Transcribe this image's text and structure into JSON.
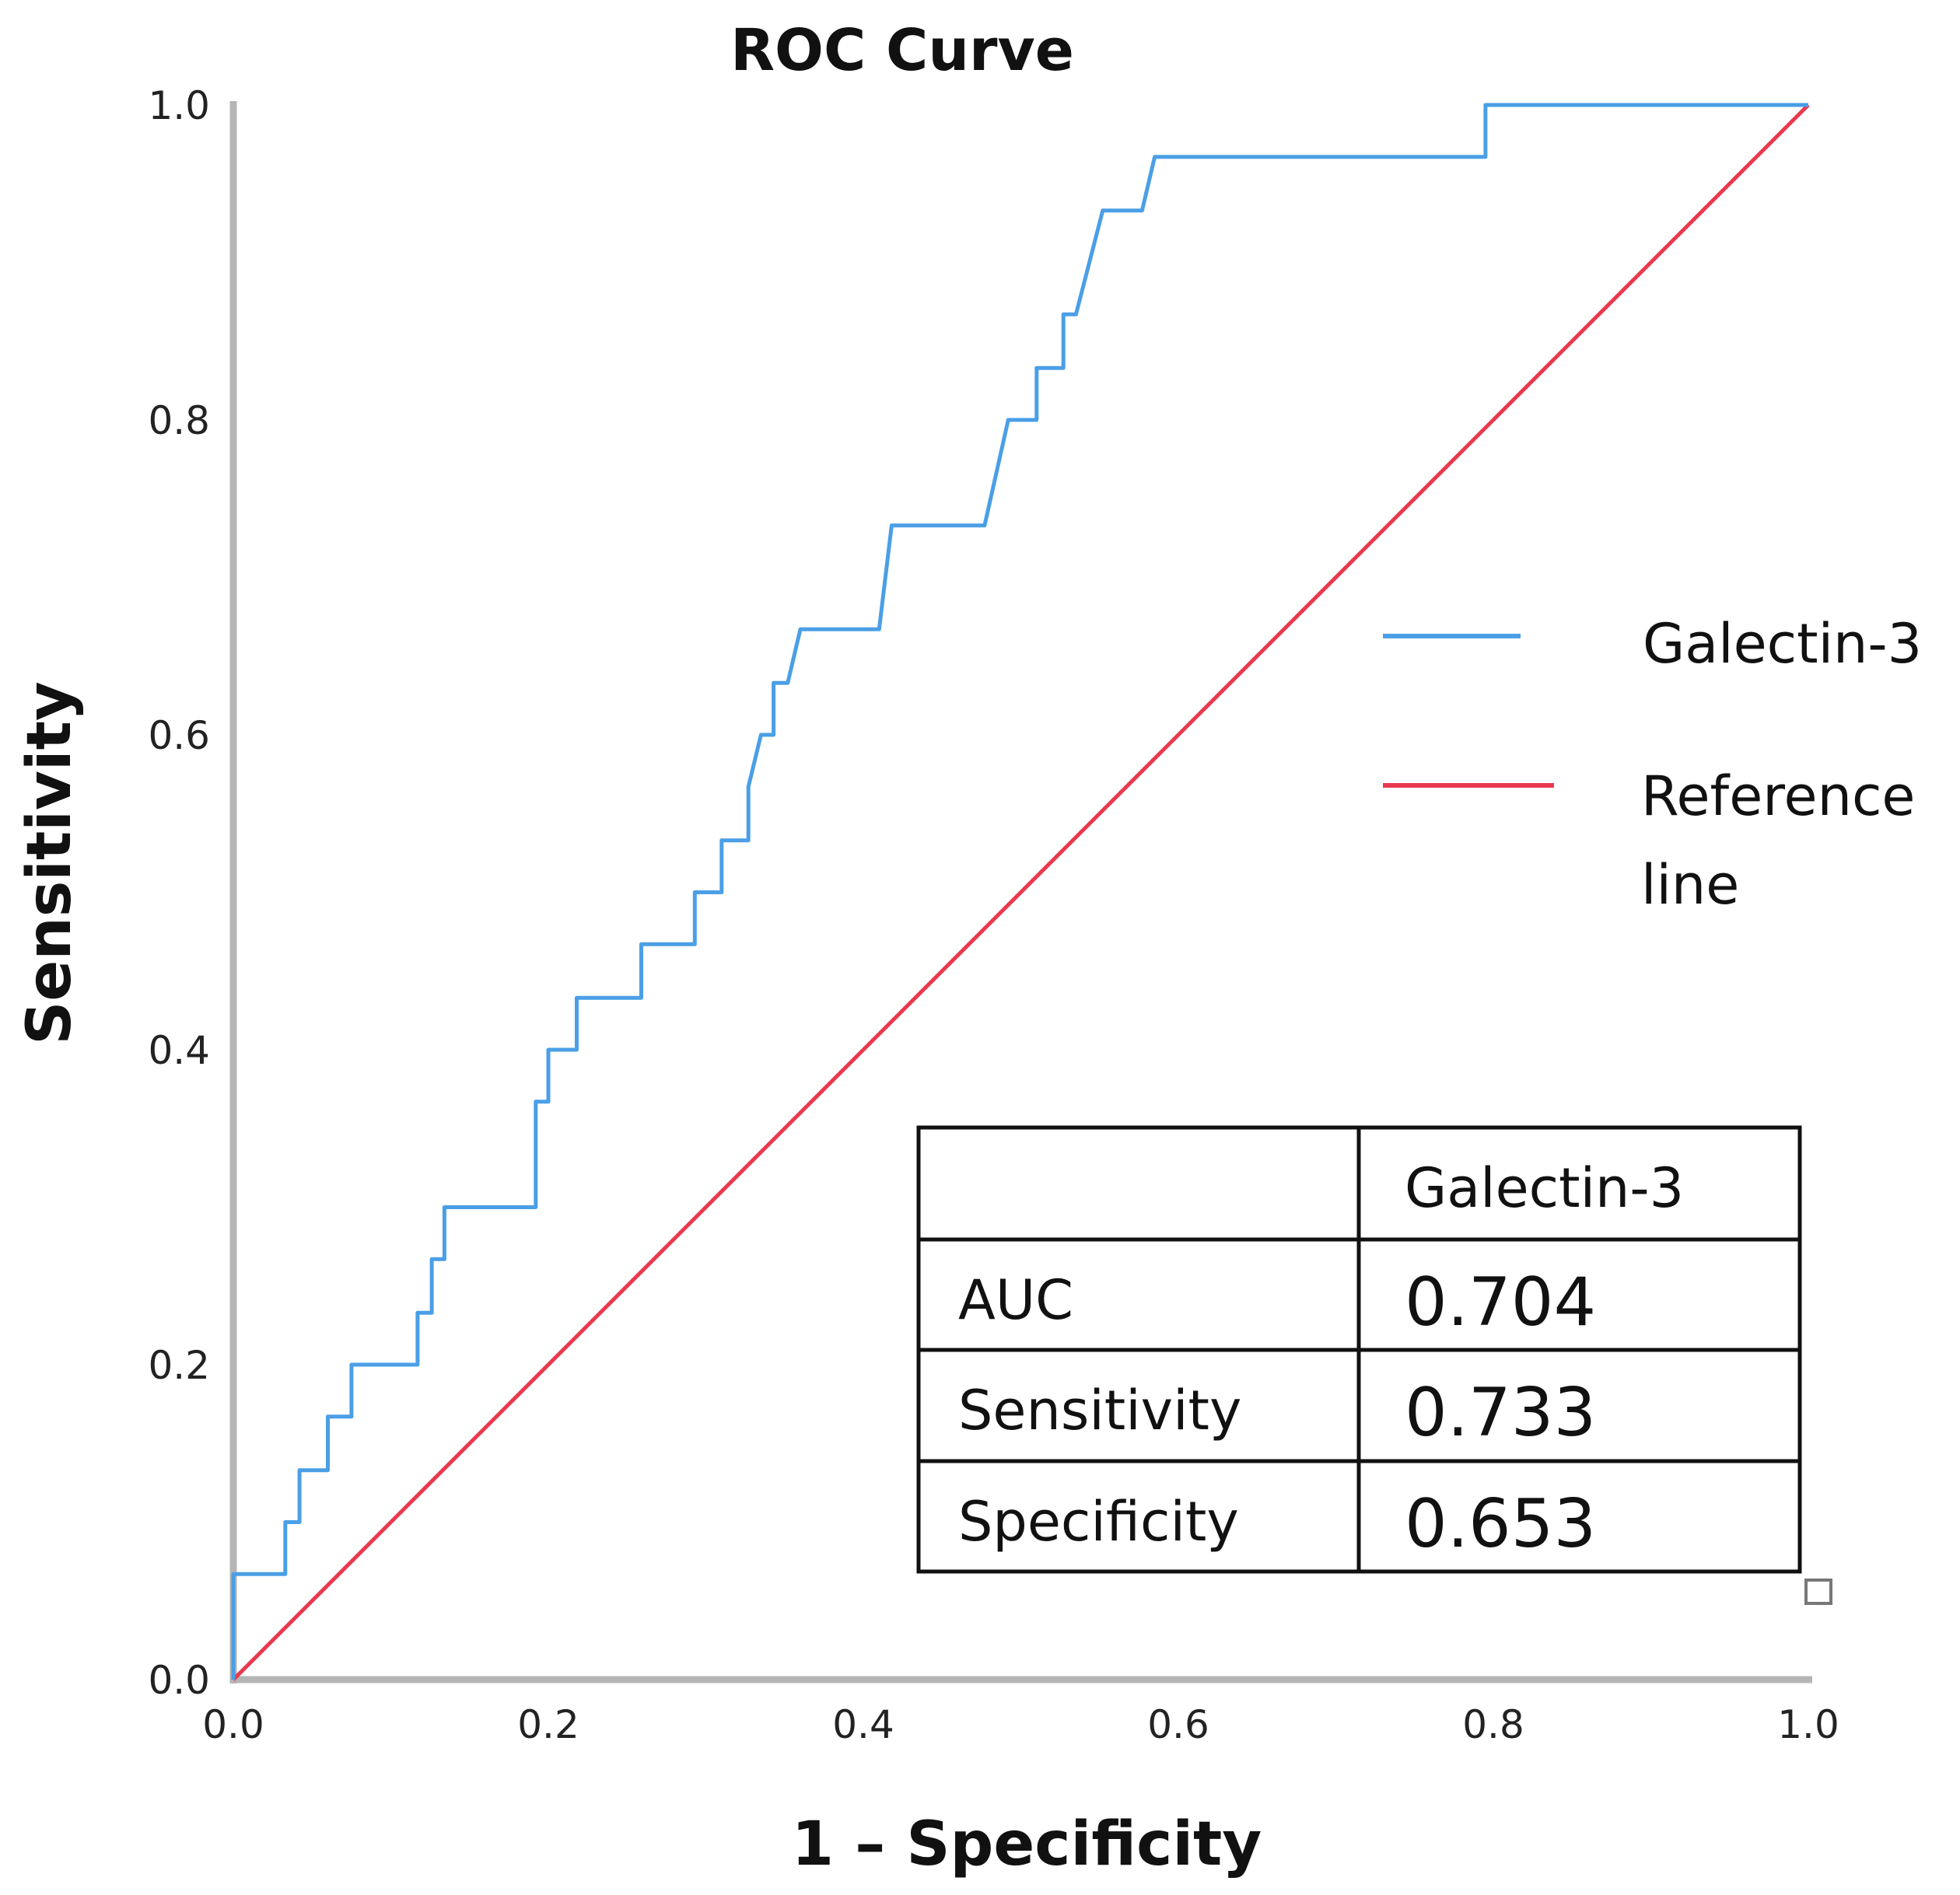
{
  "chart_data": {
    "type": "line",
    "title": "ROC Curve",
    "xlabel": "1 – Specificity",
    "ylabel": "Sensitivity",
    "xlim": [
      0,
      1
    ],
    "ylim": [
      0,
      1
    ],
    "x_ticks": [
      "0.0",
      "0.2",
      "0.4",
      "0.6",
      "0.8",
      "1.0"
    ],
    "y_ticks": [
      "0.0",
      "0.2",
      "0.4",
      "0.6",
      "0.8",
      "1.0"
    ],
    "grid": false,
    "legend": {
      "placement": "right",
      "entries": [
        {
          "label": "Galectin-3",
          "color": "#4a9fe6"
        },
        {
          "label_lines": [
            "Reference",
            "line"
          ],
          "color": "#e8394f"
        }
      ]
    },
    "series": [
      {
        "name": "Galectin-3",
        "color": "#4a9fe6",
        "points": [
          [
            0,
            0
          ],
          [
            0,
            0.067
          ],
          [
            0.033,
            0.067
          ],
          [
            0.033,
            0.1
          ],
          [
            0.042,
            0.1
          ],
          [
            0.042,
            0.133
          ],
          [
            0.06,
            0.133
          ],
          [
            0.06,
            0.167
          ],
          [
            0.075,
            0.167
          ],
          [
            0.075,
            0.2
          ],
          [
            0.117,
            0.2
          ],
          [
            0.117,
            0.233
          ],
          [
            0.126,
            0.233
          ],
          [
            0.126,
            0.267
          ],
          [
            0.134,
            0.267
          ],
          [
            0.134,
            0.3
          ],
          [
            0.192,
            0.3
          ],
          [
            0.192,
            0.367
          ],
          [
            0.2,
            0.367
          ],
          [
            0.2,
            0.4
          ],
          [
            0.218,
            0.4
          ],
          [
            0.218,
            0.433
          ],
          [
            0.259,
            0.433
          ],
          [
            0.259,
            0.467
          ],
          [
            0.293,
            0.467
          ],
          [
            0.293,
            0.5
          ],
          [
            0.31,
            0.5
          ],
          [
            0.31,
            0.533
          ],
          [
            0.327,
            0.533
          ],
          [
            0.327,
            0.567
          ],
          [
            0.335,
            0.6
          ],
          [
            0.343,
            0.6
          ],
          [
            0.343,
            0.633
          ],
          [
            0.352,
            0.633
          ],
          [
            0.36,
            0.667
          ],
          [
            0.41,
            0.667
          ],
          [
            0.418,
            0.733
          ],
          [
            0.477,
            0.733
          ],
          [
            0.492,
            0.8
          ],
          [
            0.51,
            0.8
          ],
          [
            0.51,
            0.833
          ],
          [
            0.527,
            0.833
          ],
          [
            0.527,
            0.867
          ],
          [
            0.535,
            0.867
          ],
          [
            0.552,
            0.933
          ],
          [
            0.577,
            0.933
          ],
          [
            0.585,
            0.967
          ],
          [
            0.795,
            0.967
          ],
          [
            0.795,
            1.0
          ],
          [
            1.0,
            1.0
          ]
        ]
      },
      {
        "name": "Reference line",
        "color": "#e8394f",
        "points": [
          [
            0,
            0
          ],
          [
            1,
            1
          ]
        ]
      }
    ],
    "table": {
      "header": [
        "",
        "Galectin-3"
      ],
      "rows": [
        {
          "label": "AUC",
          "value": "0.704"
        },
        {
          "label": "Sensitivity",
          "value": "0.733"
        },
        {
          "label": "Specificity",
          "value": "0.653"
        }
      ]
    }
  }
}
